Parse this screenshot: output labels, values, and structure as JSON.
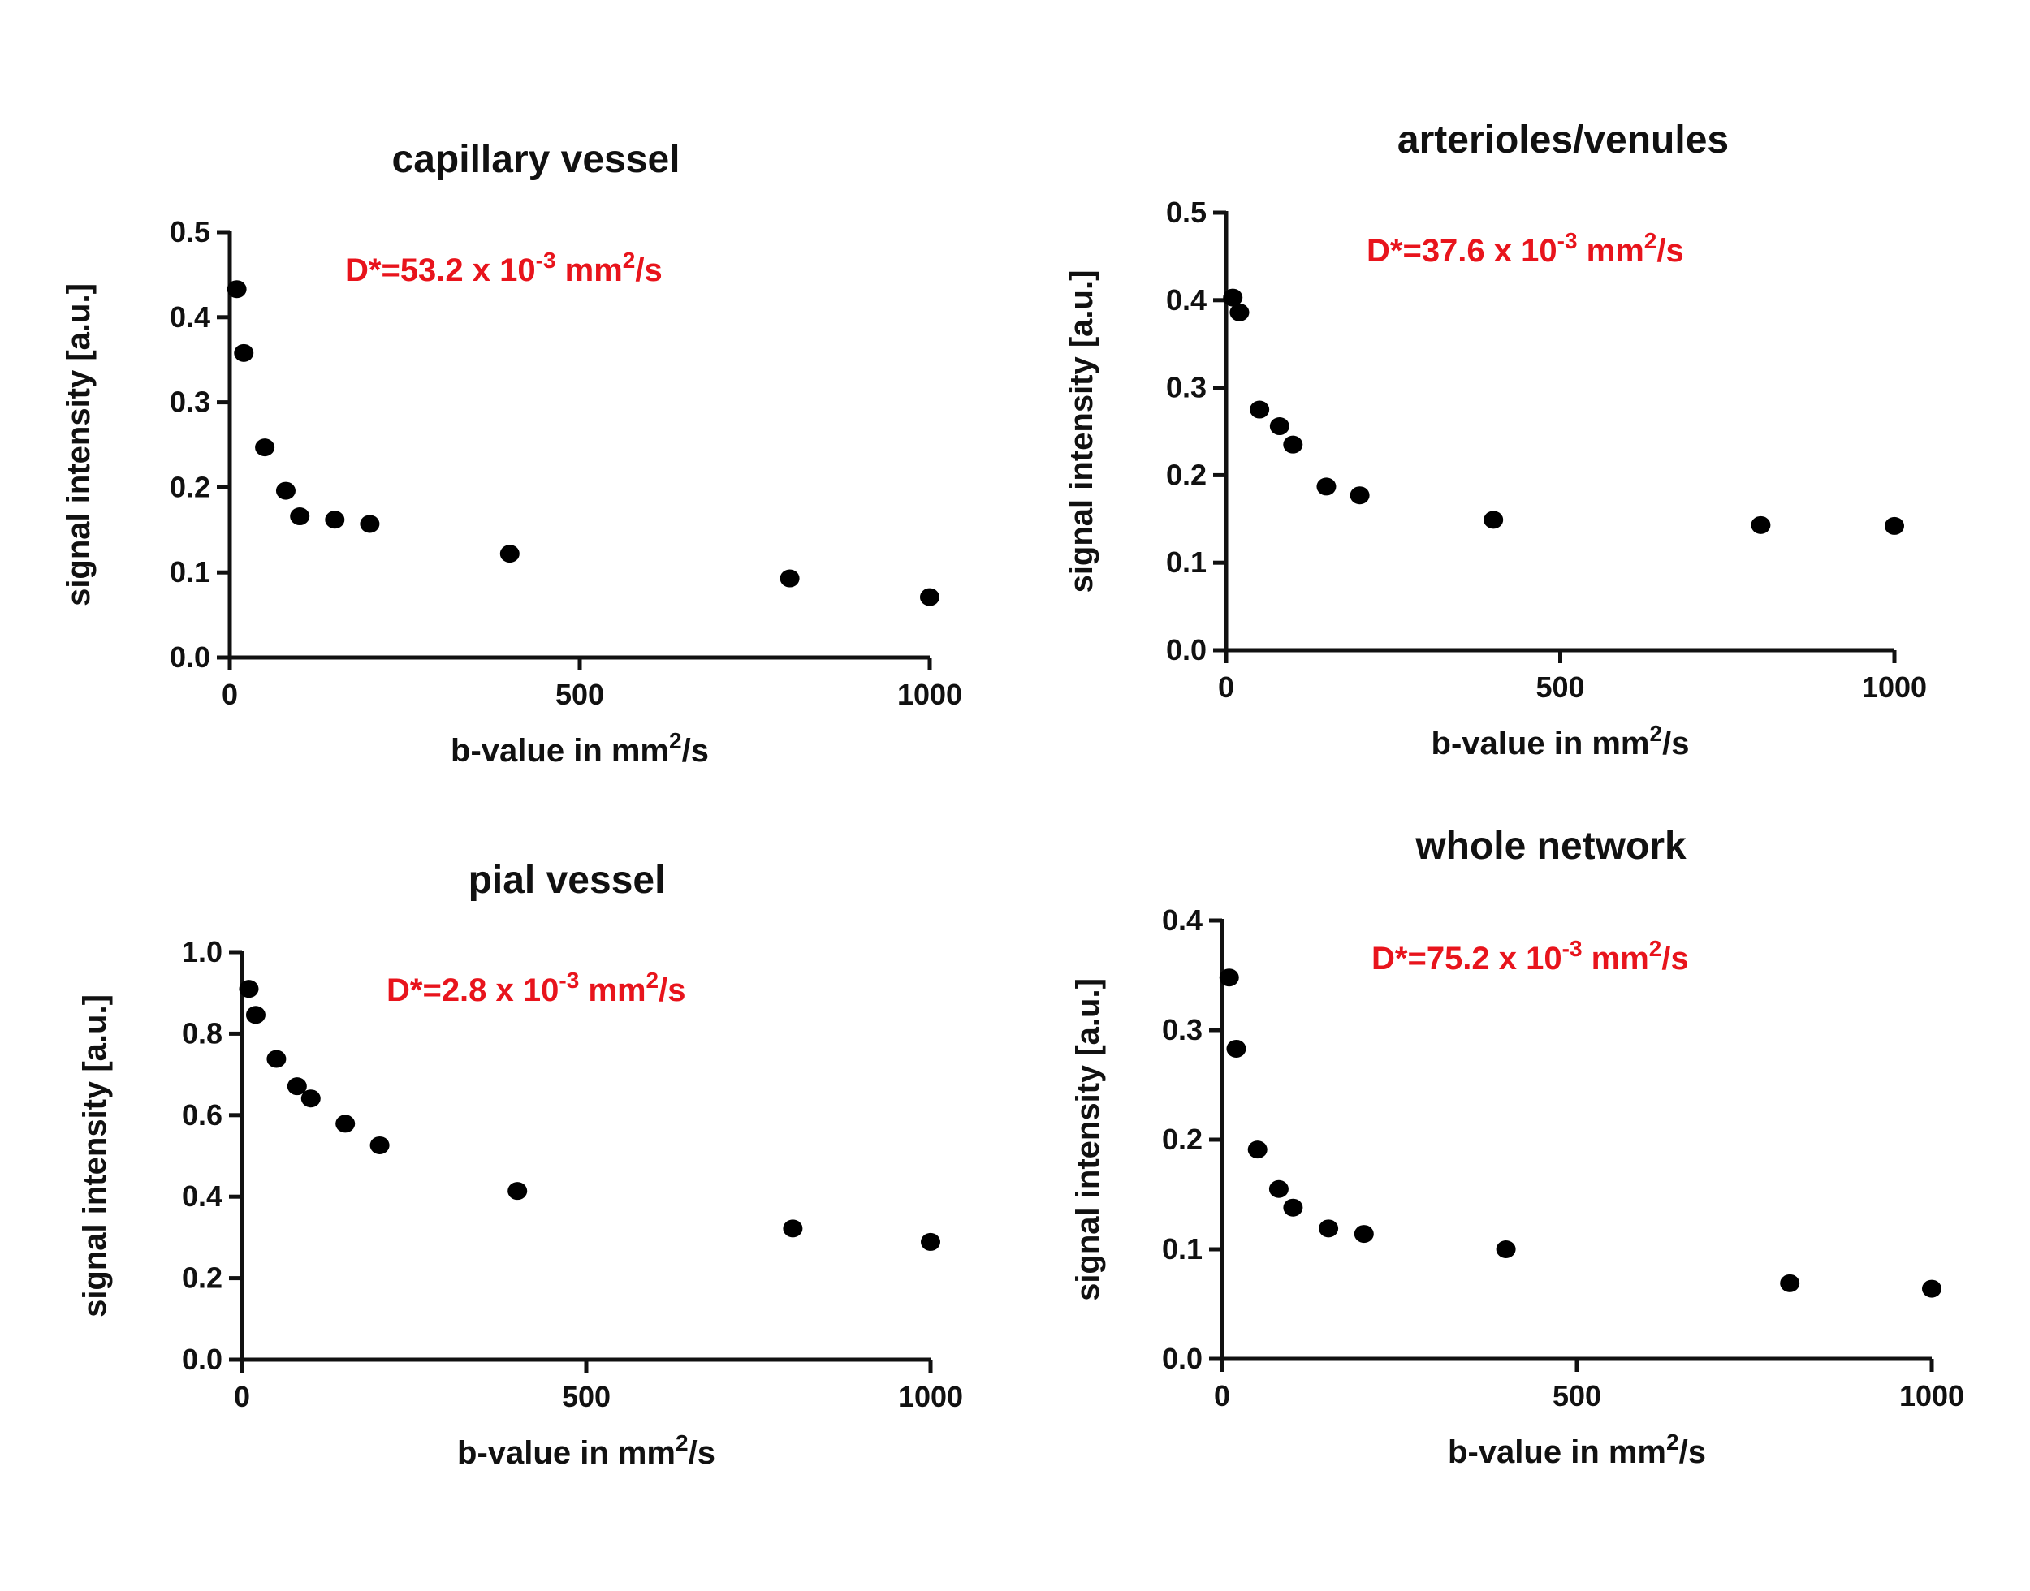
{
  "chart_data": [
    {
      "type": "scatter",
      "title": "capillary vessel",
      "xlabel": "b-value in mm",
      "xlabel_sup": "2",
      "xlabel_suffix": "/s",
      "ylabel": "signal intensity [a.u.]",
      "xlim": [
        0,
        1000
      ],
      "ylim": [
        0,
        0.5
      ],
      "xticks": [
        "0",
        "500",
        "1000"
      ],
      "yticks": [
        "0.0",
        "0.1",
        "0.2",
        "0.3",
        "0.4",
        "0.5"
      ],
      "annotation": {
        "prefix": "D*=53.2 x 10",
        "exp": "-3",
        "unit": " mm",
        "unit_sup": "2",
        "suffix": "/s",
        "color": "#e8141c"
      },
      "points": [
        {
          "x": 10,
          "y": 0.433
        },
        {
          "x": 20,
          "y": 0.358
        },
        {
          "x": 50,
          "y": 0.247
        },
        {
          "x": 80,
          "y": 0.196
        },
        {
          "x": 100,
          "y": 0.166
        },
        {
          "x": 150,
          "y": 0.162
        },
        {
          "x": 200,
          "y": 0.157
        },
        {
          "x": 400,
          "y": 0.122
        },
        {
          "x": 800,
          "y": 0.093
        },
        {
          "x": 1000,
          "y": 0.071
        }
      ],
      "marker_color": "#000000"
    },
    {
      "type": "scatter",
      "title": "arterioles/venules",
      "xlabel": "b-value in mm",
      "xlabel_sup": "2",
      "xlabel_suffix": "/s",
      "ylabel": "signal intensity [a.u.]",
      "xlim": [
        0,
        1000
      ],
      "ylim": [
        0,
        0.5
      ],
      "xticks": [
        "0",
        "500",
        "1000"
      ],
      "yticks": [
        "0.0",
        "0.1",
        "0.2",
        "0.3",
        "0.4",
        "0.5"
      ],
      "annotation": {
        "prefix": "D*=37.6 x 10",
        "exp": "-3",
        "unit": " mm",
        "unit_sup": "2",
        "suffix": "/s",
        "color": "#e8141c"
      },
      "points": [
        {
          "x": 10,
          "y": 0.403
        },
        {
          "x": 20,
          "y": 0.386
        },
        {
          "x": 50,
          "y": 0.275
        },
        {
          "x": 80,
          "y": 0.256
        },
        {
          "x": 100,
          "y": 0.235
        },
        {
          "x": 150,
          "y": 0.187
        },
        {
          "x": 200,
          "y": 0.177
        },
        {
          "x": 400,
          "y": 0.149
        },
        {
          "x": 800,
          "y": 0.143
        },
        {
          "x": 1000,
          "y": 0.142
        }
      ],
      "marker_color": "#000000"
    },
    {
      "type": "scatter",
      "title": "pial vessel",
      "xlabel": "b-value in mm",
      "xlabel_sup": "2",
      "xlabel_suffix": "/s",
      "ylabel": "signal intensity [a.u.]",
      "xlim": [
        0,
        1000
      ],
      "ylim": [
        0,
        1.0
      ],
      "xticks": [
        "0",
        "500",
        "1000"
      ],
      "yticks": [
        "0.0",
        "0.2",
        "0.4",
        "0.6",
        "0.8",
        "1.0"
      ],
      "annotation": {
        "prefix": "D*=2.8 x 10",
        "exp": "-3",
        "unit": " mm",
        "unit_sup": "2",
        "suffix": "/s",
        "color": "#e8141c"
      },
      "points": [
        {
          "x": 10,
          "y": 0.91
        },
        {
          "x": 20,
          "y": 0.846
        },
        {
          "x": 50,
          "y": 0.738
        },
        {
          "x": 80,
          "y": 0.671
        },
        {
          "x": 100,
          "y": 0.641
        },
        {
          "x": 150,
          "y": 0.579
        },
        {
          "x": 200,
          "y": 0.526
        },
        {
          "x": 400,
          "y": 0.414
        },
        {
          "x": 800,
          "y": 0.322
        },
        {
          "x": 1000,
          "y": 0.289
        }
      ],
      "marker_color": "#000000"
    },
    {
      "type": "scatter",
      "title": "whole network",
      "xlabel": "b-value in mm",
      "xlabel_sup": "2",
      "xlabel_suffix": "/s",
      "ylabel": "signal intensity [a.u.]",
      "xlim": [
        0,
        1000
      ],
      "ylim": [
        0,
        0.4
      ],
      "xticks": [
        "0",
        "500",
        "1000"
      ],
      "yticks": [
        "0.0",
        "0.1",
        "0.2",
        "0.3",
        "0.4"
      ],
      "annotation": {
        "prefix": "D*=75.2 x 10",
        "exp": "-3",
        "unit": " mm",
        "unit_sup": "2",
        "suffix": "/s",
        "color": "#e8141c"
      },
      "points": [
        {
          "x": 10,
          "y": 0.348
        },
        {
          "x": 20,
          "y": 0.283
        },
        {
          "x": 50,
          "y": 0.191
        },
        {
          "x": 80,
          "y": 0.155
        },
        {
          "x": 100,
          "y": 0.138
        },
        {
          "x": 150,
          "y": 0.119
        },
        {
          "x": 200,
          "y": 0.114
        },
        {
          "x": 400,
          "y": 0.1
        },
        {
          "x": 800,
          "y": 0.069
        },
        {
          "x": 1000,
          "y": 0.064
        }
      ],
      "marker_color": "#000000"
    }
  ]
}
